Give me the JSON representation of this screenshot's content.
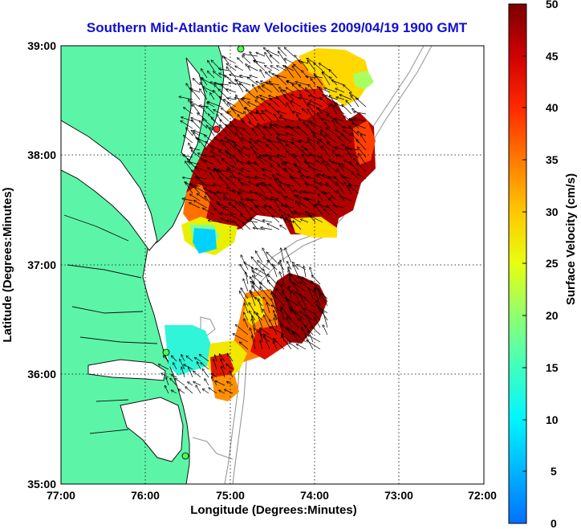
{
  "chart_data": {
    "type": "heatmap",
    "title": "Southern Mid-Atlantic Raw Velocities 2009/04/19 1900 GMT",
    "xlabel": "Longitude (Degrees:Minutes)",
    "ylabel": "Latitude (Degrees:Minutes)",
    "xlim": [
      -77,
      -72
    ],
    "ylim": [
      35,
      39
    ],
    "x_ticks": [
      "77:00",
      "76:00",
      "75:00",
      "74:00",
      "73:00",
      "72:00"
    ],
    "y_ticks": [
      "39:00",
      "38:00",
      "37:00",
      "36:00",
      "35:00"
    ],
    "grid": true,
    "colorbar": {
      "label": "Surface Velocity (cm/s)",
      "range": [
        0,
        50
      ],
      "ticks": [
        "50",
        "45",
        "40",
        "35",
        "30",
        "25",
        "20",
        "15",
        "10",
        "5",
        "0"
      ],
      "colormap": "jet"
    }
  },
  "colors": {
    "land": "#5cf5a8",
    "coast": "#111111",
    "bathymetry": "#999999",
    "title": "#1010d0"
  }
}
